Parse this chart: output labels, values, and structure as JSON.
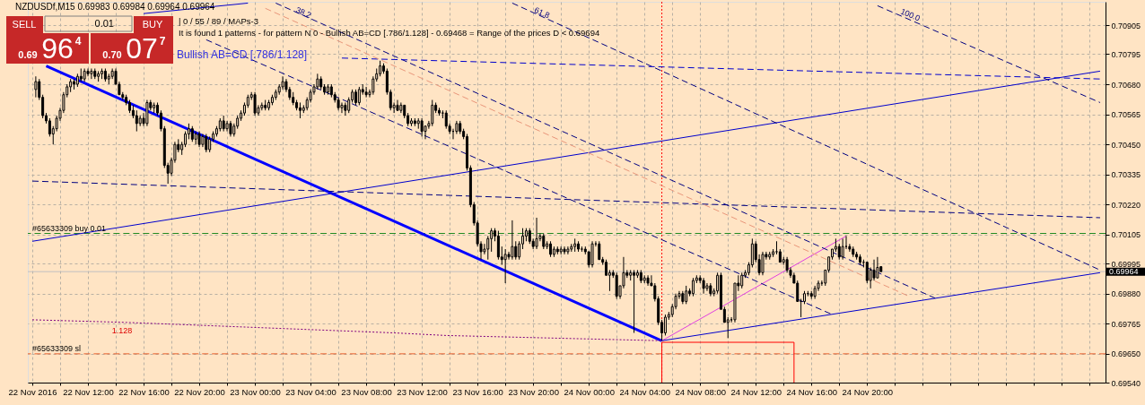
{
  "chart_data": {
    "type": "candlestick",
    "title": "NZDUSDf,M15 0.69983 0.69984 0.69964 0.69964",
    "color": "#000000",
    "xlim": [
      "2016-11-22T08:00",
      "2016-11-25T12:49"
    ],
    "ylim": [
      0.6954,
      0.70995
    ],
    "xticks": [
      {
        "value": "2016-11-22T08:00",
        "label": "22 Nov 2016"
      },
      {
        "value": "2016-11-22T10:00",
        "label": null
      },
      {
        "value": "2016-11-22T12:00",
        "label": "22 Nov 12:00"
      },
      {
        "value": "2016-11-22T14:00",
        "label": null
      },
      {
        "value": "2016-11-22T16:00",
        "label": "22 Nov 16:00"
      },
      {
        "value": "2016-11-22T18:00",
        "label": null
      },
      {
        "value": "2016-11-22T20:00",
        "label": "22 Nov 20:00"
      },
      {
        "value": "2016-11-22T22:00",
        "label": null
      },
      {
        "value": "2016-11-23T00:00",
        "label": "23 Nov 00:00"
      },
      {
        "value": "2016-11-23T02:00",
        "label": null
      },
      {
        "value": "2016-11-23T04:00",
        "label": "23 Nov 04:00"
      },
      {
        "value": "2016-11-23T06:00",
        "label": null
      },
      {
        "value": "2016-11-23T08:00",
        "label": "23 Nov 08:00"
      },
      {
        "value": "2016-11-23T10:00",
        "label": null
      },
      {
        "value": "2016-11-23T12:00",
        "label": "23 Nov 12:00"
      },
      {
        "value": "2016-11-23T14:00",
        "label": null
      },
      {
        "value": "2016-11-23T16:00",
        "label": "23 Nov 16:00"
      },
      {
        "value": "2016-11-23T18:00",
        "label": null
      },
      {
        "value": "2016-11-23T20:00",
        "label": "23 Nov 20:00"
      },
      {
        "value": "2016-11-23T22:00",
        "label": null
      },
      {
        "value": "2016-11-24T00:00",
        "label": "24 Nov 00:00"
      },
      {
        "value": "2016-11-24T02:00",
        "label": null
      },
      {
        "value": "2016-11-24T04:00",
        "label": "24 Nov 04:00"
      },
      {
        "value": "2016-11-24T06:00",
        "label": null
      },
      {
        "value": "2016-11-24T08:00",
        "label": "24 Nov 08:00"
      },
      {
        "value": "2016-11-24T10:00",
        "label": null
      },
      {
        "value": "2016-11-24T12:00",
        "label": "24 Nov 12:00"
      },
      {
        "value": "2016-11-24T14:00",
        "label": null
      },
      {
        "value": "2016-11-24T16:00",
        "label": "24 Nov 16:00"
      },
      {
        "value": "2016-11-24T18:00",
        "label": null
      },
      {
        "value": "2016-11-24T20:00",
        "label": "24 Nov 20:00"
      },
      {
        "value": "2016-11-24T22:00",
        "label": null
      },
      {
        "value": "2016-11-25T00:00",
        "label": null
      },
      {
        "value": "2016-11-25T02:00",
        "label": null
      },
      {
        "value": "2016-11-25T04:00",
        "label": null
      },
      {
        "value": "2016-11-25T06:00",
        "label": null
      },
      {
        "value": "2016-11-25T08:00",
        "label": null
      },
      {
        "value": "2016-11-25T10:00",
        "label": null
      },
      {
        "value": "2016-11-25T12:00",
        "label": null
      }
    ],
    "yticks": [
      0.70905,
      0.70795,
      {
        "value": 0.7068,
        "label": "0.70680"
      },
      0.70565,
      {
        "value": 0.7045,
        "label": "0.70450"
      },
      0.70335,
      {
        "value": 0.7022,
        "label": "0.70220"
      },
      0.70105,
      0.69995,
      {
        "value": 0.6988,
        "label": "0.69880"
      },
      0.69765,
      {
        "value": 0.6965,
        "label": "0.69650"
      },
      {
        "value": 0.6954,
        "label": "0.69540"
      }
    ],
    "grid": true,
    "x": [
      "2016-11-22T08:15",
      "2016-11-22T08:30",
      "2016-11-22T08:45",
      "2016-11-22T09:00",
      "2016-11-22T09:15",
      "2016-11-22T09:30",
      "2016-11-22T09:45",
      "2016-11-22T10:00",
      "2016-11-22T10:15",
      "2016-11-22T10:30",
      "2016-11-22T10:45",
      "2016-11-22T11:00",
      "2016-11-22T11:15",
      "2016-11-22T11:30",
      "2016-11-22T11:45",
      "2016-11-22T12:00",
      "2016-11-22T12:15",
      "2016-11-22T12:30",
      "2016-11-22T12:45",
      "2016-11-22T13:00",
      "2016-11-22T13:15",
      "2016-11-22T13:30",
      "2016-11-22T13:45",
      "2016-11-22T14:00",
      "2016-11-22T14:15",
      "2016-11-22T14:30",
      "2016-11-22T14:45",
      "2016-11-22T15:00",
      "2016-11-22T15:15",
      "2016-11-22T15:30",
      "2016-11-22T15:45",
      "2016-11-22T16:00",
      "2016-11-22T16:15",
      "2016-11-22T16:30",
      "2016-11-22T16:45",
      "2016-11-22T17:00",
      "2016-11-22T17:15",
      "2016-11-22T17:30",
      "2016-11-22T17:45",
      "2016-11-22T18:00",
      "2016-11-22T18:15",
      "2016-11-22T18:30",
      "2016-11-22T18:45",
      "2016-11-22T19:00",
      "2016-11-22T19:15",
      "2016-11-22T19:30",
      "2016-11-22T19:45",
      "2016-11-22T20:00",
      "2016-11-22T20:15",
      "2016-11-22T20:30",
      "2016-11-22T20:45",
      "2016-11-22T21:00",
      "2016-11-22T21:15",
      "2016-11-22T21:30",
      "2016-11-22T21:45",
      "2016-11-22T22:00",
      "2016-11-22T22:15",
      "2016-11-22T22:30",
      "2016-11-22T22:45",
      "2016-11-22T23:00",
      "2016-11-22T23:15",
      "2016-11-22T23:30",
      "2016-11-22T23:45",
      "2016-11-23T00:00",
      "2016-11-23T00:15",
      "2016-11-23T00:30",
      "2016-11-23T00:45",
      "2016-11-23T01:00",
      "2016-11-23T01:15",
      "2016-11-23T01:30",
      "2016-11-23T01:45",
      "2016-11-23T02:00",
      "2016-11-23T02:15",
      "2016-11-23T02:30",
      "2016-11-23T02:45",
      "2016-11-23T03:00",
      "2016-11-23T03:15",
      "2016-11-23T03:30",
      "2016-11-23T03:45",
      "2016-11-23T04:00",
      "2016-11-23T04:15",
      "2016-11-23T04:30",
      "2016-11-23T04:45",
      "2016-11-23T05:00",
      "2016-11-23T05:15",
      "2016-11-23T05:30",
      "2016-11-23T05:45",
      "2016-11-23T06:00",
      "2016-11-23T06:15",
      "2016-11-23T06:30",
      "2016-11-23T06:45",
      "2016-11-23T07:00",
      "2016-11-23T07:15",
      "2016-11-23T07:30",
      "2016-11-23T07:45",
      "2016-11-23T08:00",
      "2016-11-23T08:15",
      "2016-11-23T08:30",
      "2016-11-23T08:45",
      "2016-11-23T09:00",
      "2016-11-23T09:15",
      "2016-11-23T09:30",
      "2016-11-23T09:45",
      "2016-11-23T10:00",
      "2016-11-23T10:15",
      "2016-11-23T10:30",
      "2016-11-23T10:45",
      "2016-11-23T11:00",
      "2016-11-23T11:15",
      "2016-11-23T11:30",
      "2016-11-23T11:45",
      "2016-11-23T12:00",
      "2016-11-23T12:15",
      "2016-11-23T12:30",
      "2016-11-23T12:45",
      "2016-11-23T13:00",
      "2016-11-23T13:15",
      "2016-11-23T13:30",
      "2016-11-23T13:45",
      "2016-11-23T14:00",
      "2016-11-23T14:15",
      "2016-11-23T14:30",
      "2016-11-23T14:45",
      "2016-11-23T15:00",
      "2016-11-23T15:15",
      "2016-11-23T15:30",
      "2016-11-23T15:45",
      "2016-11-23T16:00",
      "2016-11-23T16:15",
      "2016-11-23T16:30",
      "2016-11-23T16:45",
      "2016-11-23T17:00",
      "2016-11-23T17:15",
      "2016-11-23T17:30",
      "2016-11-23T17:45",
      "2016-11-23T18:00",
      "2016-11-23T18:15",
      "2016-11-23T18:30",
      "2016-11-23T18:45",
      "2016-11-23T19:00",
      "2016-11-23T19:15",
      "2016-11-23T19:30",
      "2016-11-23T19:45",
      "2016-11-23T20:00",
      "2016-11-23T20:15",
      "2016-11-23T20:30",
      "2016-11-23T20:45",
      "2016-11-23T21:00",
      "2016-11-23T21:15",
      "2016-11-23T21:30",
      "2016-11-23T21:45",
      "2016-11-23T22:00",
      "2016-11-23T22:15",
      "2016-11-23T22:30",
      "2016-11-23T22:45",
      "2016-11-23T23:00",
      "2016-11-23T23:15",
      "2016-11-23T23:30",
      "2016-11-23T23:45",
      "2016-11-24T00:00",
      "2016-11-24T00:15",
      "2016-11-24T00:30",
      "2016-11-24T00:45",
      "2016-11-24T01:00",
      "2016-11-24T01:15",
      "2016-11-24T01:30",
      "2016-11-24T01:45",
      "2016-11-24T02:00",
      "2016-11-24T02:15",
      "2016-11-24T02:30",
      "2016-11-24T02:45",
      "2016-11-24T03:00",
      "2016-11-24T03:15",
      "2016-11-24T03:30",
      "2016-11-24T03:45",
      "2016-11-24T04:00",
      "2016-11-24T04:15",
      "2016-11-24T04:30",
      "2016-11-24T04:45",
      "2016-11-24T05:00",
      "2016-11-24T05:15",
      "2016-11-24T05:30",
      "2016-11-24T05:45",
      "2016-11-24T06:00",
      "2016-11-24T06:15",
      "2016-11-24T06:30",
      "2016-11-24T06:45",
      "2016-11-24T07:00",
      "2016-11-24T07:15",
      "2016-11-24T07:30",
      "2016-11-24T07:45",
      "2016-11-24T08:00",
      "2016-11-24T08:15",
      "2016-11-24T08:30",
      "2016-11-24T08:45",
      "2016-11-24T09:00",
      "2016-11-24T09:15",
      "2016-11-24T09:30",
      "2016-11-24T09:45",
      "2016-11-24T10:00",
      "2016-11-24T10:15",
      "2016-11-24T10:30",
      "2016-11-24T10:45",
      "2016-11-24T11:00",
      "2016-11-24T11:15",
      "2016-11-24T11:30",
      "2016-11-24T11:45",
      "2016-11-24T12:00",
      "2016-11-24T12:15",
      "2016-11-24T12:30",
      "2016-11-24T12:45",
      "2016-11-24T13:00",
      "2016-11-24T13:15",
      "2016-11-24T13:30",
      "2016-11-24T13:45",
      "2016-11-24T14:00",
      "2016-11-24T14:15",
      "2016-11-24T14:30",
      "2016-11-24T14:45",
      "2016-11-24T15:00",
      "2016-11-24T15:15",
      "2016-11-24T15:30",
      "2016-11-24T15:45",
      "2016-11-24T16:00",
      "2016-11-24T16:15",
      "2016-11-24T16:30",
      "2016-11-24T16:45",
      "2016-11-24T17:00",
      "2016-11-24T17:15",
      "2016-11-24T17:30",
      "2016-11-24T17:45",
      "2016-11-24T18:00",
      "2016-11-24T18:15",
      "2016-11-24T18:30",
      "2016-11-24T18:45",
      "2016-11-24T19:00",
      "2016-11-24T19:15",
      "2016-11-24T19:30",
      "2016-11-24T19:45",
      "2016-11-24T20:00",
      "2016-11-24T20:15",
      "2016-11-24T20:30",
      "2016-11-24T20:45",
      "2016-11-24T21:00"
    ],
    "ohlc": [
      [
        0.7066,
        0.7071,
        0.7063,
        0.7069
      ],
      [
        0.7069,
        0.707,
        0.7062,
        0.7063
      ],
      [
        0.7063,
        0.7064,
        0.7055,
        0.7056
      ],
      [
        0.7056,
        0.7057,
        0.7053,
        0.7054
      ],
      [
        0.7054,
        0.7055,
        0.7048,
        0.7049
      ],
      [
        0.7049,
        0.7052,
        0.7045,
        0.7051
      ],
      [
        0.7051,
        0.7056,
        0.705,
        0.7055
      ],
      [
        0.7055,
        0.7059,
        0.7054,
        0.7058
      ],
      [
        0.7058,
        0.7065,
        0.7057,
        0.7064
      ],
      [
        0.7064,
        0.7068,
        0.7063,
        0.7067
      ],
      [
        0.7067,
        0.707,
        0.7065,
        0.7069
      ],
      [
        0.7069,
        0.707,
        0.7066,
        0.7068
      ],
      [
        0.7068,
        0.7072,
        0.7067,
        0.7071
      ],
      [
        0.7071,
        0.7074,
        0.7069,
        0.707
      ],
      [
        0.707,
        0.7074,
        0.7069,
        0.7073
      ],
      [
        0.7073,
        0.7074,
        0.7071,
        0.7072
      ],
      [
        0.7072,
        0.7074,
        0.707,
        0.7073
      ],
      [
        0.7073,
        0.7074,
        0.707,
        0.7071
      ],
      [
        0.7071,
        0.7073,
        0.7069,
        0.7072
      ],
      [
        0.7072,
        0.7074,
        0.707,
        0.7073
      ],
      [
        0.7073,
        0.7074,
        0.7069,
        0.707
      ],
      [
        0.707,
        0.7072,
        0.7068,
        0.7071
      ],
      [
        0.7071,
        0.7074,
        0.707,
        0.7073
      ],
      [
        0.7073,
        0.7074,
        0.7068,
        0.7068
      ],
      [
        0.7068,
        0.7069,
        0.7064,
        0.7064
      ],
      [
        0.7064,
        0.7065,
        0.7062,
        0.7063
      ],
      [
        0.7063,
        0.7064,
        0.706,
        0.7061
      ],
      [
        0.7061,
        0.7062,
        0.7057,
        0.7058
      ],
      [
        0.7058,
        0.706,
        0.7055,
        0.7056
      ],
      [
        0.7056,
        0.7058,
        0.705,
        0.7053
      ],
      [
        0.7053,
        0.7056,
        0.7052,
        0.7055
      ],
      [
        0.7055,
        0.7057,
        0.7052,
        0.7053
      ],
      [
        0.7053,
        0.7062,
        0.7052,
        0.7061
      ],
      [
        0.7061,
        0.7062,
        0.7058,
        0.7059
      ],
      [
        0.7059,
        0.7061,
        0.7057,
        0.706
      ],
      [
        0.706,
        0.7061,
        0.7056,
        0.7057
      ],
      [
        0.7057,
        0.7058,
        0.705,
        0.7051
      ],
      [
        0.7051,
        0.7052,
        0.7036,
        0.7037
      ],
      [
        0.7037,
        0.7038,
        0.703,
        0.7034
      ],
      [
        0.7034,
        0.704,
        0.7033,
        0.7039
      ],
      [
        0.7039,
        0.7046,
        0.7038,
        0.7045
      ],
      [
        0.7045,
        0.7047,
        0.7042,
        0.7043
      ],
      [
        0.7043,
        0.7046,
        0.7041,
        0.7045
      ],
      [
        0.7045,
        0.705,
        0.7044,
        0.7049
      ],
      [
        0.7049,
        0.7053,
        0.7047,
        0.7051
      ],
      [
        0.7051,
        0.7052,
        0.7046,
        0.7047
      ],
      [
        0.7047,
        0.705,
        0.7045,
        0.7049
      ],
      [
        0.7049,
        0.705,
        0.7044,
        0.7045
      ],
      [
        0.7045,
        0.7049,
        0.7044,
        0.7048
      ],
      [
        0.7048,
        0.7049,
        0.7042,
        0.7043
      ],
      [
        0.7043,
        0.7048,
        0.7042,
        0.7047
      ],
      [
        0.7047,
        0.705,
        0.7046,
        0.7049
      ],
      [
        0.7049,
        0.7052,
        0.7048,
        0.7051
      ],
      [
        0.7051,
        0.7055,
        0.705,
        0.7054
      ],
      [
        0.7054,
        0.7056,
        0.705,
        0.7051
      ],
      [
        0.7051,
        0.7054,
        0.705,
        0.7053
      ],
      [
        0.7053,
        0.7054,
        0.7048,
        0.7049
      ],
      [
        0.7049,
        0.7053,
        0.7048,
        0.7052
      ],
      [
        0.7052,
        0.7056,
        0.7051,
        0.7055
      ],
      [
        0.7055,
        0.7058,
        0.7054,
        0.7057
      ],
      [
        0.7057,
        0.7061,
        0.7056,
        0.706
      ],
      [
        0.706,
        0.7064,
        0.7059,
        0.7063
      ],
      [
        0.7063,
        0.7065,
        0.7062,
        0.7064
      ],
      [
        0.7064,
        0.7065,
        0.7056,
        0.7057
      ],
      [
        0.7057,
        0.706,
        0.7056,
        0.7059
      ],
      [
        0.7059,
        0.7061,
        0.7058,
        0.706
      ],
      [
        0.706,
        0.7062,
        0.7058,
        0.7059
      ],
      [
        0.7059,
        0.7062,
        0.7058,
        0.7061
      ],
      [
        0.7061,
        0.7064,
        0.706,
        0.7063
      ],
      [
        0.7063,
        0.7066,
        0.7062,
        0.7065
      ],
      [
        0.7065,
        0.7068,
        0.7064,
        0.7067
      ],
      [
        0.7067,
        0.7071,
        0.7066,
        0.7069
      ],
      [
        0.7069,
        0.707,
        0.7065,
        0.7066
      ],
      [
        0.7066,
        0.7067,
        0.7062,
        0.7063
      ],
      [
        0.7063,
        0.7065,
        0.706,
        0.7061
      ],
      [
        0.7061,
        0.7062,
        0.7058,
        0.7059
      ],
      [
        0.7059,
        0.7061,
        0.7055,
        0.7058
      ],
      [
        0.7058,
        0.706,
        0.7057,
        0.7059
      ],
      [
        0.7059,
        0.7063,
        0.7058,
        0.7062
      ],
      [
        0.7062,
        0.7066,
        0.7061,
        0.7065
      ],
      [
        0.7065,
        0.7068,
        0.7064,
        0.7067
      ],
      [
        0.7067,
        0.7072,
        0.7066,
        0.707
      ],
      [
        0.707,
        0.7071,
        0.7066,
        0.7067
      ],
      [
        0.7067,
        0.7068,
        0.7064,
        0.7065
      ],
      [
        0.7065,
        0.7068,
        0.7064,
        0.7067
      ],
      [
        0.7067,
        0.7068,
        0.7063,
        0.7064
      ],
      [
        0.7064,
        0.7065,
        0.7061,
        0.7062
      ],
      [
        0.7062,
        0.7063,
        0.7058,
        0.7059
      ],
      [
        0.7059,
        0.7061,
        0.7057,
        0.706
      ],
      [
        0.706,
        0.7061,
        0.7056,
        0.7058
      ],
      [
        0.7058,
        0.7063,
        0.7057,
        0.7062
      ],
      [
        0.7062,
        0.7066,
        0.7061,
        0.7065
      ],
      [
        0.7065,
        0.7066,
        0.706,
        0.7061
      ],
      [
        0.7061,
        0.7067,
        0.706,
        0.7066
      ],
      [
        0.7066,
        0.7068,
        0.7064,
        0.7065
      ],
      [
        0.7065,
        0.7067,
        0.7063,
        0.7064
      ],
      [
        0.7064,
        0.7066,
        0.7063,
        0.7065
      ],
      [
        0.7065,
        0.7071,
        0.7064,
        0.707
      ],
      [
        0.707,
        0.7074,
        0.7069,
        0.7072
      ],
      [
        0.7072,
        0.7077,
        0.7071,
        0.7075
      ],
      [
        0.7075,
        0.7076,
        0.7072,
        0.7073
      ],
      [
        0.7073,
        0.7074,
        0.7064,
        0.7065
      ],
      [
        0.7065,
        0.7066,
        0.7058,
        0.7059
      ],
      [
        0.7059,
        0.7061,
        0.7057,
        0.706
      ],
      [
        0.706,
        0.7062,
        0.7058,
        0.7058
      ],
      [
        0.7058,
        0.7061,
        0.7057,
        0.706
      ],
      [
        0.706,
        0.706,
        0.7055,
        0.7056
      ],
      [
        0.7056,
        0.7057,
        0.7052,
        0.7053
      ],
      [
        0.7053,
        0.7055,
        0.7052,
        0.7054
      ],
      [
        0.7054,
        0.7055,
        0.7052,
        0.7053
      ],
      [
        0.7053,
        0.7055,
        0.7051,
        0.7054
      ],
      [
        0.7054,
        0.7055,
        0.7048,
        0.705
      ],
      [
        0.705,
        0.7052,
        0.7047,
        0.7052
      ],
      [
        0.7052,
        0.7054,
        0.7051,
        0.7053
      ],
      [
        0.7053,
        0.7062,
        0.7052,
        0.706
      ],
      [
        0.706,
        0.7061,
        0.7057,
        0.7058
      ],
      [
        0.7058,
        0.7059,
        0.7056,
        0.7057
      ],
      [
        0.7057,
        0.7058,
        0.7055,
        0.7057
      ],
      [
        0.7057,
        0.7058,
        0.7051,
        0.7052
      ],
      [
        0.7052,
        0.7053,
        0.7049,
        0.705
      ],
      [
        0.705,
        0.7051,
        0.7047,
        0.705
      ],
      [
        0.705,
        0.7054,
        0.7049,
        0.7053
      ],
      [
        0.7053,
        0.7054,
        0.7049,
        0.705
      ],
      [
        0.705,
        0.7051,
        0.7047,
        0.7048
      ],
      [
        0.7048,
        0.7049,
        0.7035,
        0.7036
      ],
      [
        0.7036,
        0.7037,
        0.7021,
        0.7022
      ],
      [
        0.7022,
        0.7023,
        0.7014,
        0.7015
      ],
      [
        0.7015,
        0.7016,
        0.7006,
        0.7007
      ],
      [
        0.7007,
        0.7008,
        0.7001,
        0.7004
      ],
      [
        0.7004,
        0.7007,
        0.7003,
        0.7005
      ],
      [
        0.7005,
        0.701,
        0.7001,
        0.7009
      ],
      [
        0.7009,
        0.7013,
        0.7004,
        0.7012
      ],
      [
        0.7012,
        0.7013,
        0.7008,
        0.701
      ],
      [
        0.701,
        0.7012,
        0.7001,
        0.7002
      ],
      [
        0.7002,
        0.7006,
        0.6999,
        0.7001
      ],
      [
        0.7001,
        0.7005,
        0.6992,
        0.7003
      ],
      [
        0.7003,
        0.7004,
        0.7001,
        0.7002
      ],
      [
        0.7002,
        0.7016,
        0.7001,
        0.7006
      ],
      [
        0.7006,
        0.7008,
        0.7001,
        0.7002
      ],
      [
        0.7002,
        0.7008,
        0.7001,
        0.7007
      ],
      [
        0.7007,
        0.7013,
        0.7005,
        0.701
      ],
      [
        0.701,
        0.7013,
        0.7008,
        0.7012
      ],
      [
        0.7012,
        0.7013,
        0.7007,
        0.7008
      ],
      [
        0.7008,
        0.7009,
        0.7005,
        0.7006
      ],
      [
        0.7006,
        0.7017,
        0.7005,
        0.7009
      ],
      [
        0.7009,
        0.7011,
        0.7008,
        0.701
      ],
      [
        0.701,
        0.7011,
        0.7005,
        0.7006
      ],
      [
        0.7006,
        0.7008,
        0.7005,
        0.7007
      ],
      [
        0.7007,
        0.7008,
        0.7002,
        0.7003
      ],
      [
        0.7003,
        0.7006,
        0.7002,
        0.7005
      ],
      [
        0.7005,
        0.7006,
        0.7003,
        0.7004
      ],
      [
        0.7004,
        0.7006,
        0.7003,
        0.7005
      ],
      [
        0.7005,
        0.7006,
        0.7003,
        0.7004
      ],
      [
        0.7004,
        0.7006,
        0.7003,
        0.7005
      ],
      [
        0.7005,
        0.7007,
        0.7004,
        0.7006
      ],
      [
        0.7006,
        0.7009,
        0.7004,
        0.7007
      ],
      [
        0.7007,
        0.7008,
        0.7004,
        0.7005
      ],
      [
        0.7005,
        0.7006,
        0.7004,
        0.7005
      ],
      [
        0.7005,
        0.7006,
        0.7003,
        0.7004
      ],
      [
        0.7004,
        0.7004,
        0.6998,
        0.6999
      ],
      [
        0.6999,
        0.7008,
        0.6998,
        0.7007
      ],
      [
        0.7007,
        0.7008,
        0.7006,
        0.7007
      ],
      [
        0.7007,
        0.7008,
        0.7001,
        0.7001
      ],
      [
        0.7001,
        0.7002,
        0.6999,
        0.7
      ],
      [
        0.7,
        0.7001,
        0.6995,
        0.6995
      ],
      [
        0.6995,
        0.6997,
        0.6989,
        0.6996
      ],
      [
        0.6996,
        0.6997,
        0.6994,
        0.6995
      ],
      [
        0.6995,
        0.6996,
        0.6986,
        0.6987
      ],
      [
        0.6987,
        0.6991,
        0.6986,
        0.6991
      ],
      [
        0.6991,
        0.7002,
        0.699,
        0.6996
      ],
      [
        0.6996,
        0.6997,
        0.6994,
        0.6995
      ],
      [
        0.6995,
        0.6997,
        0.6993,
        0.6996
      ],
      [
        0.6996,
        0.6997,
        0.6973,
        0.6995
      ],
      [
        0.6995,
        0.6997,
        0.6994,
        0.6996
      ],
      [
        0.6996,
        0.6997,
        0.6992,
        0.6993
      ],
      [
        0.6993,
        0.6995,
        0.6992,
        0.6994
      ],
      [
        0.6994,
        0.6995,
        0.6991,
        0.6992
      ],
      [
        0.6992,
        0.6995,
        0.6991,
        0.6991
      ],
      [
        0.6991,
        0.6992,
        0.6985,
        0.6986
      ],
      [
        0.6986,
        0.6987,
        0.6976,
        0.6977
      ],
      [
        0.6977,
        0.6978,
        0.697,
        0.6973
      ],
      [
        0.6973,
        0.698,
        0.6972,
        0.6979
      ],
      [
        0.6979,
        0.6981,
        0.6978,
        0.698
      ],
      [
        0.698,
        0.6984,
        0.6979,
        0.6983
      ],
      [
        0.6983,
        0.6988,
        0.6982,
        0.6987
      ],
      [
        0.6987,
        0.6989,
        0.6986,
        0.6988
      ],
      [
        0.6988,
        0.6989,
        0.6984,
        0.6985
      ],
      [
        0.6985,
        0.6991,
        0.6984,
        0.6989
      ],
      [
        0.6989,
        0.699,
        0.6987,
        0.6988
      ],
      [
        0.6988,
        0.6994,
        0.6987,
        0.6993
      ],
      [
        0.6993,
        0.6995,
        0.6992,
        0.6994
      ],
      [
        0.6994,
        0.6995,
        0.6992,
        0.6993
      ],
      [
        0.6993,
        0.6994,
        0.6988,
        0.699
      ],
      [
        0.699,
        0.6992,
        0.6989,
        0.6991
      ],
      [
        0.6991,
        0.6992,
        0.6987,
        0.6988
      ],
      [
        0.6988,
        0.699,
        0.6987,
        0.6989
      ],
      [
        0.6989,
        0.6996,
        0.6988,
        0.6995
      ],
      [
        0.6995,
        0.6996,
        0.6982,
        0.6982
      ],
      [
        0.6982,
        0.6983,
        0.6977,
        0.6977
      ],
      [
        0.6977,
        0.6979,
        0.6971,
        0.6978
      ],
      [
        0.6978,
        0.6979,
        0.6977,
        0.6978
      ],
      [
        0.6978,
        0.6992,
        0.6977,
        0.6992
      ],
      [
        0.6992,
        0.6995,
        0.6989,
        0.6991
      ],
      [
        0.6991,
        0.6996,
        0.699,
        0.6995
      ],
      [
        0.6995,
        0.6997,
        0.6994,
        0.6996
      ],
      [
        0.6996,
        0.7,
        0.6995,
        0.6999
      ],
      [
        0.6999,
        0.7009,
        0.6998,
        0.7007
      ],
      [
        0.7007,
        0.7008,
        0.7,
        0.7001
      ],
      [
        0.7001,
        0.7003,
        0.6995,
        0.6996
      ],
      [
        0.6996,
        0.7004,
        0.6995,
        0.7003
      ],
      [
        0.7003,
        0.7004,
        0.7001,
        0.7002
      ],
      [
        0.7002,
        0.7004,
        0.7001,
        0.7003
      ],
      [
        0.7003,
        0.7005,
        0.7002,
        0.7004
      ],
      [
        0.7004,
        0.7008,
        0.7003,
        0.7004
      ],
      [
        0.7004,
        0.7005,
        0.7,
        0.7
      ],
      [
        0.7,
        0.7002,
        0.6999,
        0.7001
      ],
      [
        0.7001,
        0.7002,
        0.6996,
        0.6997
      ],
      [
        0.6997,
        0.6998,
        0.6994,
        0.6995
      ],
      [
        0.6995,
        0.6996,
        0.6992,
        0.6992
      ],
      [
        0.6992,
        0.6993,
        0.6985,
        0.6985
      ],
      [
        0.6985,
        0.6986,
        0.6979,
        0.6985
      ],
      [
        0.6985,
        0.6989,
        0.6984,
        0.6988
      ],
      [
        0.6988,
        0.6989,
        0.6987,
        0.6988
      ],
      [
        0.6988,
        0.6989,
        0.6986,
        0.6987
      ],
      [
        0.6987,
        0.6991,
        0.6986,
        0.699
      ],
      [
        0.699,
        0.6993,
        0.6989,
        0.6992
      ],
      [
        0.6992,
        0.6993,
        0.6991,
        0.6992
      ],
      [
        0.6992,
        0.6997,
        0.6991,
        0.6997
      ],
      [
        0.6997,
        0.7002,
        0.6996,
        0.7002
      ],
      [
        0.7002,
        0.7005,
        0.7001,
        0.7005
      ],
      [
        0.7005,
        0.7009,
        0.7004,
        0.7006
      ],
      [
        0.7006,
        0.7007,
        0.7001,
        0.7002
      ],
      [
        0.7002,
        0.7009,
        0.7001,
        0.7006
      ],
      [
        0.7006,
        0.701,
        0.7005,
        0.7006
      ],
      [
        0.7006,
        0.7007,
        0.7004,
        0.7005
      ],
      [
        0.7005,
        0.7006,
        0.7002,
        0.7003
      ],
      [
        0.7003,
        0.7004,
        0.7001,
        0.7002
      ],
      [
        0.7002,
        0.7003,
        0.6999,
        0.7
      ],
      [
        0.7,
        0.7001,
        0.6998,
        0.7
      ],
      [
        0.7,
        0.7,
        0.6992,
        0.6993
      ],
      [
        0.6993,
        0.6998,
        0.699,
        0.6997
      ],
      [
        0.6997,
        0.7001,
        0.6993,
        0.6994
      ],
      [
        0.6994,
        0.7002,
        0.6994,
        0.6998
      ],
      [
        0.69983,
        0.69984,
        0.69964,
        0.69964
      ]
    ],
    "series": [
      {
        "type": "line",
        "color": "#0000ff",
        "line_style": "solid",
        "x": [
          "2016-11-22T09:00",
          "2016-11-24T05:15"
        ],
        "values": [
          0.7075,
          0.697
        ]
      },
      {
        "type": "line",
        "color": "#e040e0",
        "line_style": "solid",
        "x": [
          "2016-11-24T05:15",
          "2016-11-24T18:30"
        ],
        "values": [
          0.697,
          0.701
        ]
      },
      {
        "type": "line",
        "color": "#0000cd",
        "line_style": "solid",
        "x": [
          "2016-11-24T05:15",
          "2016-11-25T12:45"
        ],
        "values": [
          0.697,
          0.6996
        ]
      },
      {
        "type": "line",
        "color": "#0000cd",
        "line_style": "solid",
        "x": [
          "2016-11-22T08:00",
          "2016-11-25T12:45"
        ],
        "values": [
          0.7008,
          0.7073
        ]
      },
      {
        "type": "line",
        "color": "#000080",
        "line_style": "dashed",
        "x": [
          "2016-11-22T08:00",
          "2016-11-25T12:45"
        ],
        "values": [
          0.7031,
          0.7017
        ]
      },
      {
        "type": "line",
        "name": "38.2",
        "color": "#000080",
        "line_style": "dashed",
        "x": [
          "2016-11-23T01:30",
          "2016-11-25T01:00"
        ],
        "values": [
          0.7099,
          0.6986
        ]
      },
      {
        "type": "line",
        "color": "#000080",
        "line_style": "dashed",
        "x": [
          "2016-11-22T20:30",
          "2016-11-24T17:30"
        ],
        "values": [
          0.7085,
          0.698
        ]
      },
      {
        "type": "line",
        "name": "61.8",
        "color": "#000080",
        "line_style": "dashed",
        "x": [
          "2016-11-23T18:30",
          "2016-11-25T12:45"
        ],
        "values": [
          0.7099,
          0.6997
        ]
      },
      {
        "type": "line",
        "name": "100.0",
        "color": "#000080",
        "line_style": "dashed",
        "x": [
          "2016-11-24T20:45",
          "2016-11-25T12:45"
        ],
        "values": [
          0.7098,
          0.7061
        ]
      },
      {
        "type": "line",
        "color": "#0000cd",
        "line_style": "dashed",
        "x": [
          "2016-11-23T06:15",
          "2016-11-25T12:45"
        ],
        "values": [
          0.7078,
          0.707
        ]
      },
      {
        "type": "line",
        "color": "#e9967a",
        "line_style": "dashed",
        "x": [
          "2016-11-23T00:45",
          "2016-11-24T23:00"
        ],
        "values": [
          0.7097,
          0.6987
        ]
      },
      {
        "type": "line",
        "color": "#800080",
        "line_style": "dotted",
        "x": [
          "2016-11-22T08:00",
          "2016-11-22T14:45",
          "2016-11-23T10:00",
          "2016-11-23T13:45",
          "2016-11-24T05:15"
        ],
        "values": [
          0.6978,
          0.6977,
          0.6973,
          0.6972,
          0.697
        ]
      },
      {
        "type": "line",
        "color": "#ff0000",
        "line_style": "solid",
        "x": [
          "2016-11-24T05:15",
          "2016-11-24T05:15",
          "2016-11-24T14:45",
          "2016-11-24T14:45"
        ],
        "values": [
          0.6954,
          0.69694,
          0.69694,
          0.6954
        ]
      },
      {
        "type": "line",
        "color": "#0000cd",
        "line_style": "solid",
        "x": [
          "2016-11-22T16:00",
          "2016-11-22T23:30"
        ],
        "values": [
          0.7095,
          0.7099
        ]
      }
    ],
    "ref_lines": [
      {
        "axis": "y",
        "value": 0.7011,
        "label": "#65633309 buy 0.01",
        "color": "#228b22",
        "line_style": "dashed"
      },
      {
        "axis": "y",
        "value": 0.6965,
        "label": "#65633309 sl",
        "color": "#e8602c",
        "line_style": "dashed"
      },
      {
        "axis": "y",
        "value": 0.69964,
        "label": "0.69964",
        "color": "#c0c0c0",
        "line_style": "solid"
      },
      {
        "axis": "x",
        "value": "2016-11-24T05:15",
        "color": "#ff0000",
        "line_style": "dotted"
      }
    ],
    "annotations": [
      "SELL",
      "0.01",
      "BUY",
      "0.69",
      "96",
      "4",
      "0.70",
      "07",
      "7",
      "Bullish AB=CD [.786/1.128]",
      "| 0 / 55 / 89 / MAPs-3",
      "It is found 1 patterns - for pattern N 0 - Bullish AB=CD [.786/1.128] - 0.69468 = Range of the prices D < 0.69694",
      "1.128"
    ]
  }
}
